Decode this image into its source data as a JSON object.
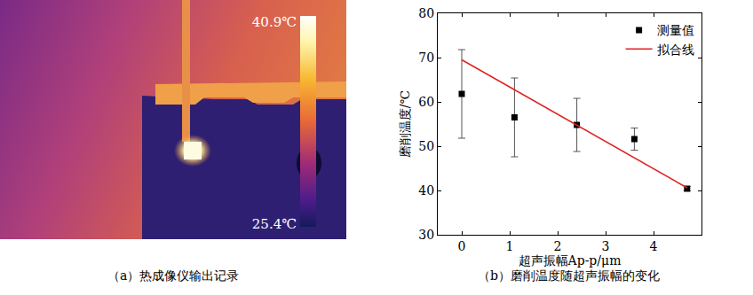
{
  "chart_data": [
    {
      "type": "thermal_image",
      "title": "（a）热成像仪输出记录",
      "colorbar": {
        "range": [
          25.4,
          40.9
        ],
        "ticks": [
          {
            "value": 40.9,
            "label": "40.9℃"
          },
          {
            "value": 25.4,
            "label": "25.4℃"
          }
        ]
      }
    },
    {
      "type": "scatter",
      "title": "（b）磨削温度随超声振幅的变化",
      "x_label": "超声振幅Ap-p/μm",
      "y_label": "磨削温度/℃",
      "xlim": [
        -0.5,
        5
      ],
      "xticks": [
        0,
        1,
        2,
        3,
        4
      ],
      "ylim": [
        30,
        80
      ],
      "yticks": [
        30,
        40,
        50,
        60,
        70,
        80
      ],
      "legend": "upper right",
      "series": [
        {
          "name": "测量值",
          "type": "scatter",
          "marker": "square",
          "color": "#000000",
          "x": [
            0,
            1.1,
            2.4,
            3.6,
            4.7
          ],
          "values": [
            61.8,
            56.5,
            54.8,
            51.6,
            40.4
          ],
          "errors": [
            10,
            8.9,
            6,
            2.5,
            0.5
          ]
        },
        {
          "name": "拟合线",
          "type": "line",
          "color": "#e02020",
          "x": [
            0,
            4.7
          ],
          "values": [
            69.5,
            40.6
          ]
        }
      ]
    }
  ]
}
